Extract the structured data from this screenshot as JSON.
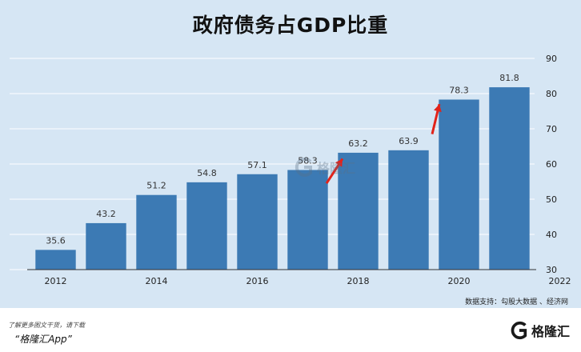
{
  "chart_data": {
    "type": "bar",
    "title": "政府债务占GDP比重",
    "categories": [
      "2012",
      "2013",
      "2014",
      "2015",
      "2016",
      "2017",
      "2018",
      "2019",
      "2020",
      "2021"
    ],
    "values": [
      35.6,
      43.2,
      51.2,
      54.8,
      57.1,
      58.3,
      63.2,
      63.9,
      78.3,
      81.8
    ],
    "value_labels": [
      "35.6",
      "43.2",
      "51.2",
      "54.8",
      "57.1",
      "58.3",
      "63.2",
      "63.9",
      "78.3",
      "81.8"
    ],
    "x_ticks": [
      "2012",
      "2014",
      "2016",
      "2018",
      "2020",
      "2022"
    ],
    "y_ticks": [
      "30",
      "40",
      "50",
      "60",
      "70",
      "80",
      "90"
    ],
    "ylim": [
      30,
      90
    ],
    "xlabel": "",
    "ylabel": "",
    "grid": true,
    "y_axis_position": "right",
    "annotations": [
      "arrow between 2018 and 2019",
      "arrow between 2020 and 2021"
    ],
    "colors": {
      "bar": "#3c7ab4",
      "background": "#d6e6f4",
      "grid": "#ffffff",
      "arrow": "#e2231a"
    }
  },
  "source": "数据支持：勾股大数据 、经济网",
  "watermark": {
    "text": "格隆汇"
  },
  "footer": {
    "line1": "了解更多图文干货，请下载",
    "line2": "“格隆汇App”",
    "logo_text": "格隆汇"
  }
}
